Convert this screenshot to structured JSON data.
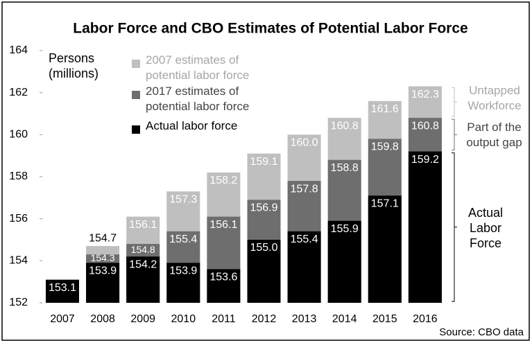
{
  "chart_data": {
    "type": "overlap-bar",
    "title": "Labor Force and CBO Estimates of Potential Labor Force",
    "y_label": "Persons (millions)",
    "categories": [
      "2007",
      "2008",
      "2009",
      "2010",
      "2011",
      "2012",
      "2013",
      "2014",
      "2015",
      "2016"
    ],
    "series": [
      {
        "name": "2007 estimates of potential labor force",
        "color": "#bfbfbf",
        "values": [
          null,
          154.7,
          156.1,
          157.3,
          158.2,
          159.1,
          160.0,
          160.8,
          161.6,
          162.3
        ],
        "value_labels": [
          null,
          "154.7",
          "156.1",
          "157.3",
          "158.2",
          "159.1",
          "160.0",
          "160.8",
          "161.6",
          "162.3"
        ]
      },
      {
        "name": "2017 estimates of potential labor force",
        "color": "#6e6e6e",
        "values": [
          null,
          154.3,
          154.8,
          155.4,
          156.1,
          156.9,
          157.8,
          158.8,
          159.8,
          160.8
        ],
        "value_labels": [
          null,
          "154.3",
          "154.8",
          "155.4",
          "156.1",
          "156.9",
          "157.8",
          "158.8",
          "159.8",
          "160.8"
        ]
      },
      {
        "name": "Actual labor force",
        "color": "#000000",
        "values": [
          153.1,
          153.9,
          154.2,
          153.9,
          153.6,
          155.0,
          155.4,
          155.9,
          157.1,
          159.2
        ],
        "value_labels": [
          "153.1",
          "153.9",
          "154.2",
          "153.9",
          "153.6",
          "155.0",
          "155.4",
          "155.9",
          "157.1",
          "159.2"
        ]
      }
    ],
    "ylim": [
      152,
      164
    ],
    "yticks": [
      152,
      154,
      156,
      158,
      160,
      162,
      164
    ],
    "annotations": [
      "Untapped Workforce",
      "Part of the output gap",
      "Actual Labor Force"
    ],
    "source": "Source: CBO data"
  }
}
